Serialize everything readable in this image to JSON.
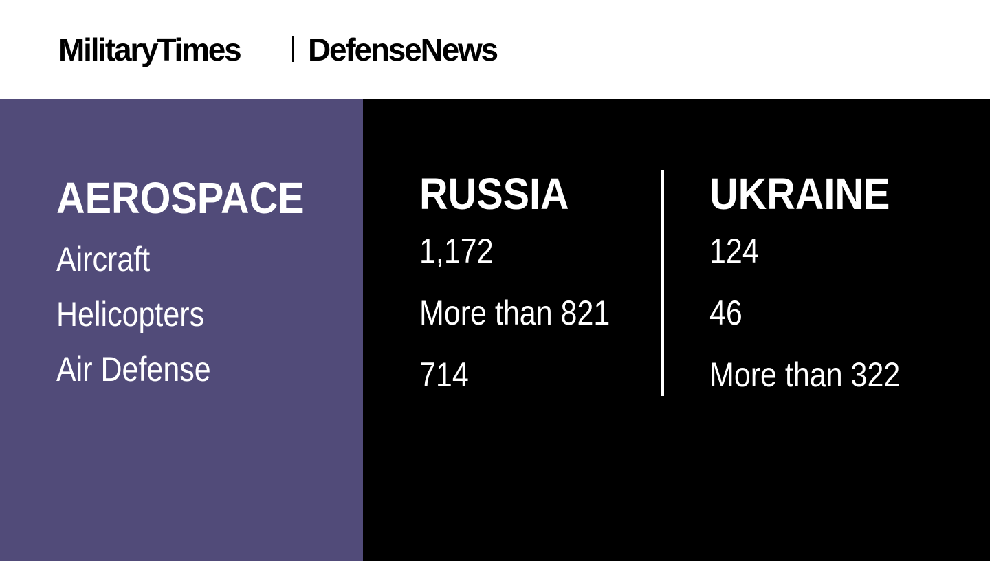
{
  "header": {
    "brand_left": "MilitaryTimes",
    "brand_right": "DefenseNews"
  },
  "category": {
    "title": "AEROSPACE",
    "items": [
      "Aircraft",
      "Helicopters",
      "Air Defense"
    ]
  },
  "columns": [
    {
      "title": "RUSSIA",
      "values": [
        "1,172",
        "More than 821",
        "714"
      ]
    },
    {
      "title": "UKRAINE",
      "values": [
        "124",
        "46",
        "More than 322"
      ]
    }
  ],
  "colors": {
    "left_panel": "#514b79",
    "right_panel": "#000000",
    "header_bg": "#ffffff",
    "text": "#ffffff"
  }
}
